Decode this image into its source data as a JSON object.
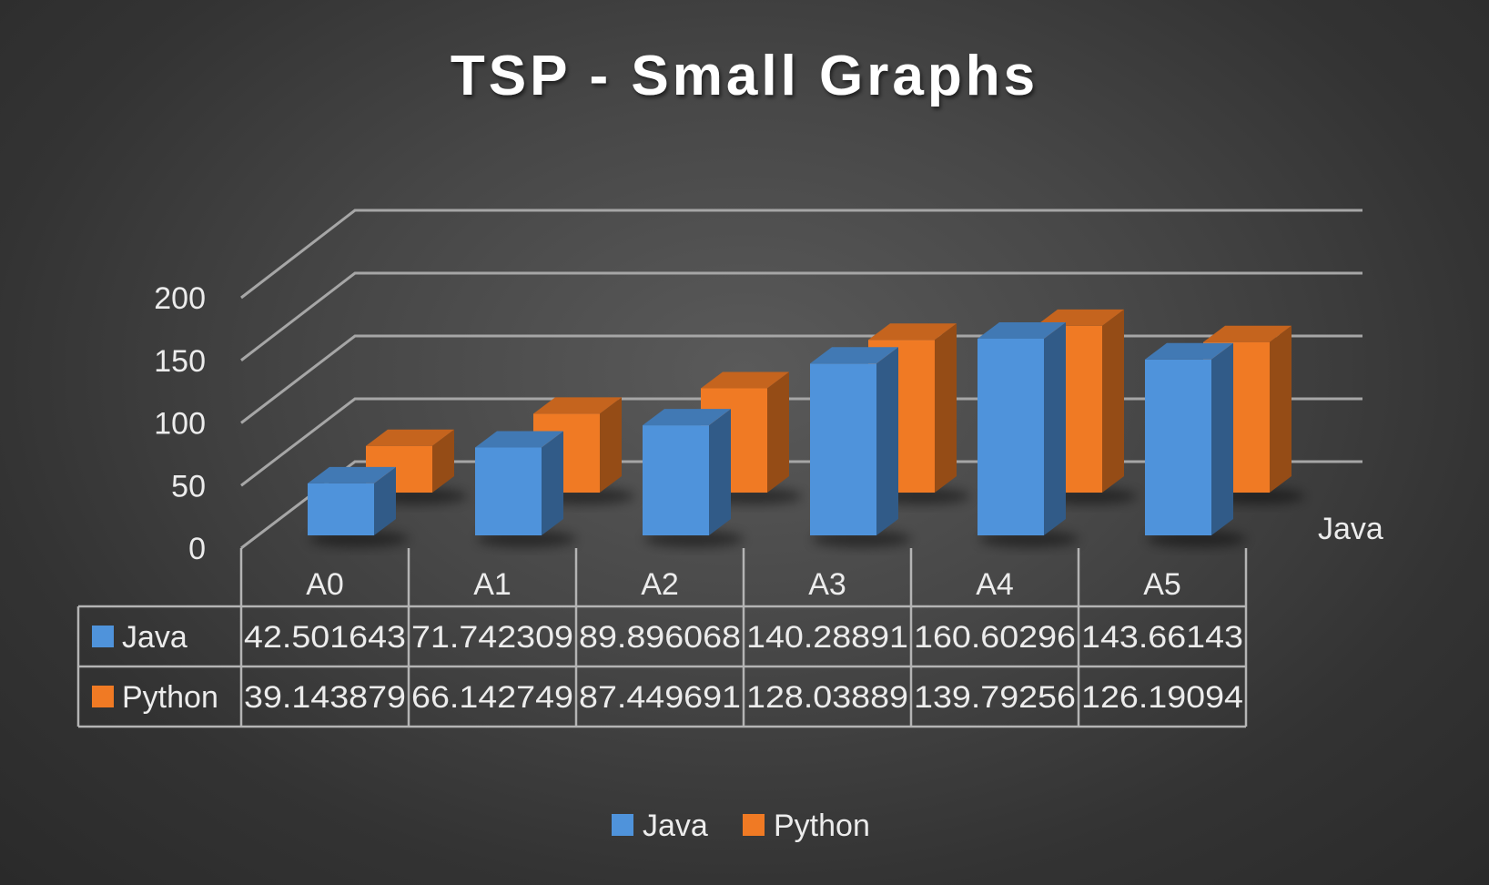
{
  "chart_data": {
    "type": "bar",
    "style": "3d-clustered-column",
    "title": "TSP - Small Graphs",
    "categories": [
      "A0",
      "A1",
      "A2",
      "A3",
      "A4",
      "A5"
    ],
    "series": [
      {
        "name": "Java",
        "color": "#4f93db",
        "values": [
          42.501643,
          71.742309,
          89.896068,
          140.28891,
          160.60296,
          143.66143
        ]
      },
      {
        "name": "Python",
        "color": "#f07a24",
        "values": [
          39.143879,
          66.142749,
          87.449691,
          128.03889,
          139.79256,
          126.19094
        ]
      }
    ],
    "value_labels": {
      "Java": [
        "42.501643",
        "71.742309",
        "89.896068",
        "140.28891",
        "160.60296",
        "143.66143"
      ],
      "Python": [
        "39.143879",
        "66.142749",
        "87.449691",
        "128.03889",
        "139.79256",
        "126.19094"
      ]
    },
    "yticks": [
      "0",
      "50",
      "100",
      "150",
      "200"
    ],
    "ylim": [
      0,
      200
    ],
    "depth_axis_label": "Java",
    "data_table": true,
    "grid": true,
    "legend": "bottom"
  }
}
